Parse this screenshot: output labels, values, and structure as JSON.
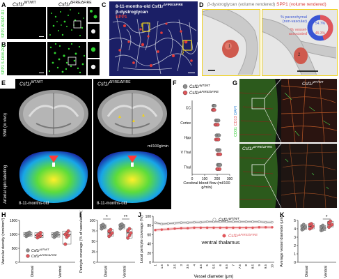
{
  "panels": {
    "A": {
      "letter": "A",
      "wt": "Csf1r",
      "wt_sup": "WT/WT",
      "fire": "Csf1r",
      "fire_sup": "ΔFIRE/ΔFIRE",
      "stain": "SPP1 AF647-R1"
    },
    "B": {
      "letter": "B",
      "stain": "SPP1 5-FAM-ZOL"
    },
    "C": {
      "letter": "C",
      "line1": "8-11-months-old Csf1r",
      "line1_sup": "ΔFIRE/ΔFIRE",
      "line2": "β-dystroglycan",
      "line3": "SPP1",
      "line4": "DAPI",
      "box1": "1",
      "box2": "2"
    },
    "D": {
      "letter": "D",
      "title_a": "β-dystroglycan (volume rendered)",
      "title_b": "SPP1 (volume rendered)",
      "lesion1": "1",
      "lesion2": "2",
      "donut": {
        "pct_a": "54.7%",
        "pct_b": "45.3%",
        "label_a": "% parenchymal (non-vascular)",
        "label_b": "% vessel-associated",
        "value_a": 54.7,
        "value_b": 45.3
      }
    },
    "E": {
      "letter": "E",
      "wt": "Csf1r",
      "wt_sup": "WT/WT",
      "fire": "Csf1r",
      "fire_sup": "ΔFIRE/ΔFIRE",
      "row1": "SWI (in vivo)",
      "row2": "Arterial spin labelling",
      "unit": "ml/100g/min",
      "age": "8-11-months-old"
    },
    "F": {
      "letter": "F",
      "legend_wt": "Csf1r",
      "legend_wt_sup": "WT/WT",
      "legend_fire": "Csf1r",
      "legend_fire_sup": "ΔFIRE/ΔFIRE",
      "xlabel": "Cerebral blood flow (ml/100 g/min)"
    },
    "G": {
      "letter": "G",
      "wt": "Csf1r",
      "wt_sup": "WT/WT",
      "fire": "Csf1r",
      "fire_sup": "ΔFIRE/ΔFIRE",
      "stain_a": "CD31",
      "stain_b": "CD13",
      "stain_c": "DAPI"
    },
    "H": {
      "letter": "H",
      "ylabel": "Vascular density (mm/mm³)"
    },
    "I": {
      "letter": "I",
      "ylabel": "Pericyte coverage (% of vasculature)",
      "sig1": "*",
      "sig2": "**"
    },
    "J": {
      "letter": "J",
      "ylabel": "Local pericyte coverage (%)",
      "xlabel": "Vessel diameter (μm)",
      "region": "ventral thalamus"
    },
    "K": {
      "letter": "K",
      "ylabel": "Average vessel diameter (μm)",
      "sig": "*"
    }
  },
  "colors": {
    "wt": "#8c8c8c",
    "fire": "#e0565b",
    "spp1": "#d83a3a",
    "green": "#2fd12f",
    "blue_donut": "#3955d4"
  },
  "chart_data": [
    {
      "type": "scatter",
      "panel": "F",
      "categories": [
        "CC",
        "Cortex",
        "Hpp",
        "V Thal",
        "Thal"
      ],
      "xlim": [
        0,
        300
      ],
      "xticks": [
        0,
        100,
        200,
        300
      ],
      "xlabel": "Cerebral blood flow (ml/100 g/min)",
      "series": [
        {
          "name": "Csf1r WT/WT",
          "values": [
            [
              170,
              175,
              180
            ],
            [
              190,
              200,
              210
            ],
            [
              195,
              205,
              215
            ],
            [
              200,
              210,
              220
            ],
            [
              205,
              215,
              225
            ]
          ]
        },
        {
          "name": "Csf1r ΔFIRE/ΔFIRE",
          "values": [
            [
              165,
              172,
              178
            ],
            [
              185,
              195,
              205
            ],
            [
              190,
              200,
              210
            ],
            [
              205,
              215,
              225
            ],
            [
              200,
              210,
              220
            ]
          ]
        }
      ]
    },
    {
      "type": "scatter",
      "panel": "H",
      "categories": [
        "Dorsal",
        "Ventral"
      ],
      "ylim": [
        0,
        1500
      ],
      "yticks": [
        0,
        500,
        1000,
        1500
      ],
      "ylabel": "Vascular density (mm/mm³)",
      "series": [
        {
          "name": "Csf1r WT/WT",
          "mean": [
            1000,
            980
          ],
          "values": [
            [
              930,
              960,
              990,
              1010,
              1040,
              1070
            ],
            [
              900,
              950,
              980,
              1000,
              1030,
              1060
            ]
          ]
        },
        {
          "name": "Csf1r ΔFIRE/ΔFIRE",
          "mean": [
            960,
            1000
          ],
          "values": [
            [
              880,
              920,
              950,
              980,
              1010,
              1060
            ],
            [
              650,
              900,
              960,
              1000,
              1050,
              1120
            ]
          ]
        }
      ]
    },
    {
      "type": "scatter",
      "panel": "I",
      "categories": [
        "Dorsal",
        "Ventral"
      ],
      "ylim": [
        0,
        100
      ],
      "yticks": [
        0,
        25,
        50,
        75,
        100
      ],
      "ylabel": "Pericyte coverage (% of vasculature)",
      "series": [
        {
          "name": "Csf1r WT/WT",
          "mean": [
            85,
            86
          ],
          "values": [
            [
              80,
              83,
              85,
              88,
              90
            ],
            [
              80,
              84,
              86,
              89,
              91
            ]
          ]
        },
        {
          "name": "Csf1r ΔFIRE/ΔFIRE",
          "mean": [
            70,
            70
          ],
          "values": [
            [
              62,
              66,
              70,
              74,
              78
            ],
            [
              58,
              64,
              70,
              75,
              80
            ]
          ]
        }
      ]
    },
    {
      "type": "line",
      "panel": "J",
      "x": [
        1,
        1.5,
        2,
        2.5,
        3,
        3.5,
        4,
        4.5,
        5,
        5.5,
        6,
        6.5,
        7,
        7.5,
        8,
        8.5,
        9,
        9.5,
        10
      ],
      "ylim": [
        0,
        100
      ],
      "yticks": [
        0,
        20,
        40,
        60,
        80,
        100
      ],
      "xlabel": "Vessel diameter (μm)",
      "ylabel": "Local pericyte coverage (%)",
      "series": [
        {
          "name": "Csf1r WT/WT",
          "values": [
            86,
            83,
            84,
            85,
            86,
            86,
            87,
            87,
            88,
            88,
            88,
            88,
            88,
            88,
            88,
            88,
            88,
            87,
            87
          ]
        },
        {
          "name": "Csf1r ΔFIRE/ΔFIRE",
          "values": [
            70,
            71,
            72,
            73,
            74,
            74,
            75,
            75,
            75,
            75,
            75,
            75,
            75,
            75,
            75,
            75,
            76,
            76,
            76
          ]
        }
      ]
    },
    {
      "type": "scatter",
      "panel": "K",
      "categories": [
        "Dorsal",
        "Ventral"
      ],
      "ylim": [
        0,
        5
      ],
      "yticks": [
        0,
        1,
        2,
        3,
        4,
        5
      ],
      "ylabel": "Average vessel diameter (μm)",
      "series": [
        {
          "name": "Csf1r WT/WT",
          "mean": [
            4.2,
            4.1
          ],
          "values": [
            [
              3.9,
              4.0,
              4.2,
              4.3,
              4.5
            ],
            [
              3.8,
              3.9,
              4.1,
              4.2,
              4.4
            ]
          ]
        },
        {
          "name": "Csf1r ΔFIRE/ΔFIRE",
          "mean": [
            4.3,
            4.5
          ],
          "values": [
            [
              4.0,
              4.1,
              4.3,
              4.5,
              4.6
            ],
            [
              4.2,
              4.4,
              4.5,
              4.7,
              4.9
            ]
          ]
        }
      ]
    }
  ]
}
